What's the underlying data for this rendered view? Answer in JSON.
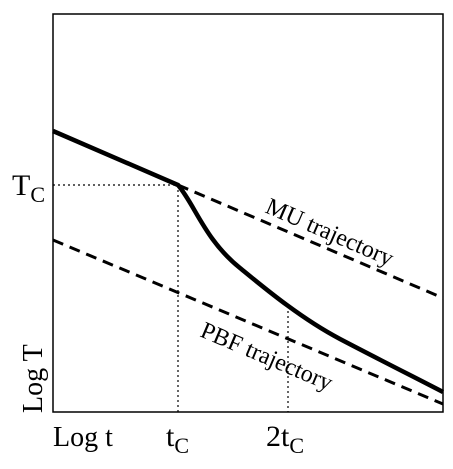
{
  "chart_data": {
    "type": "line",
    "xlabel": "Log t",
    "ylabel": "Log T",
    "xscale": "log",
    "yscale": "log",
    "grid": false,
    "legend": "none",
    "x_ticks": [
      {
        "name": "tc",
        "prefix": "t",
        "sub": "C"
      },
      {
        "name": "2tc",
        "prefix": "2t",
        "sub": "C"
      }
    ],
    "y_ticks": [
      {
        "name": "Tc",
        "prefix": "T",
        "sub": "C"
      }
    ],
    "series": [
      {
        "name": "",
        "style": "solid",
        "segments": "power-law before t_C, steeper decay after t_C"
      },
      {
        "name": "MU trajectory",
        "style": "dashed"
      },
      {
        "name": "PBF trajectory",
        "style": "dashed"
      }
    ],
    "reference_lines": [
      "dotted T_C level",
      "dotted t_C marker",
      "dotted 2t_C marker"
    ]
  }
}
